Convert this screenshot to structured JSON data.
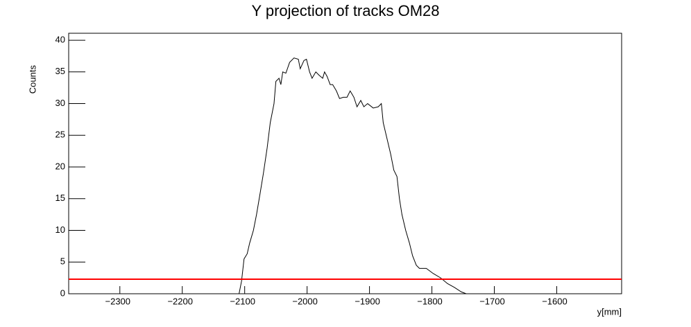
{
  "chart_data": {
    "type": "line",
    "title": "Y projection of tracks OM28",
    "xlabel": "y[mm]",
    "ylabel": "Counts",
    "color": "#000000",
    "x": [
      -2109,
      -2105,
      -2101,
      -2096,
      -2092,
      -2086,
      -2081,
      -2075,
      -2070,
      -2064,
      -2059,
      -2053,
      -2050,
      -2045,
      -2042,
      -2039,
      -2034,
      -2028,
      -2021,
      -2014,
      -2011,
      -2005,
      -2001,
      -1996,
      -1992,
      -1986,
      -1981,
      -1975,
      -1972,
      -1968,
      -1963,
      -1959,
      -1953,
      -1948,
      -1942,
      -1936,
      -1931,
      -1925,
      -1920,
      -1914,
      -1909,
      -1903,
      -1894,
      -1886,
      -1881,
      -1878,
      -1872,
      -1866,
      -1861,
      -1856,
      -1852,
      -1848,
      -1842,
      -1836,
      -1831,
      -1825,
      -1820,
      -1809,
      -1798,
      -1786,
      -1775,
      -1764,
      -1753,
      -1745
    ],
    "values": [
      0,
      2,
      5.5,
      6.3,
      8,
      10,
      12.5,
      16,
      19,
      23,
      27,
      30,
      33.5,
      34,
      33,
      35,
      34.8,
      36.5,
      37.2,
      37,
      35.5,
      36.8,
      37,
      35,
      34,
      35,
      34.5,
      34,
      35,
      34.3,
      33,
      33,
      32,
      30.8,
      31,
      31,
      32,
      31,
      29.5,
      30.5,
      29.5,
      30,
      29.3,
      29.5,
      30,
      27,
      24.5,
      22,
      19.5,
      18.5,
      15,
      12.5,
      10,
      8,
      6,
      4.5,
      4,
      4,
      3.2,
      2.5,
      1.6,
      1,
      0.3,
      0
    ],
    "hline": {
      "value": 2.3,
      "color": "#ff0000"
    },
    "xlim": [
      -2382,
      -1496
    ],
    "ylim": [
      0,
      41.1
    ],
    "xticks": [
      {
        "value": -2300,
        "label": "−2300"
      },
      {
        "value": -2200,
        "label": "−2200"
      },
      {
        "value": -2100,
        "label": "−2100"
      },
      {
        "value": -2000,
        "label": "−2000"
      },
      {
        "value": -1900,
        "label": "−1900"
      },
      {
        "value": -1800,
        "label": "−1800"
      },
      {
        "value": -1700,
        "label": "−1700"
      },
      {
        "value": -1600,
        "label": "−1600"
      }
    ],
    "yticks": [
      0,
      5,
      10,
      15,
      20,
      25,
      30,
      35,
      40
    ]
  }
}
